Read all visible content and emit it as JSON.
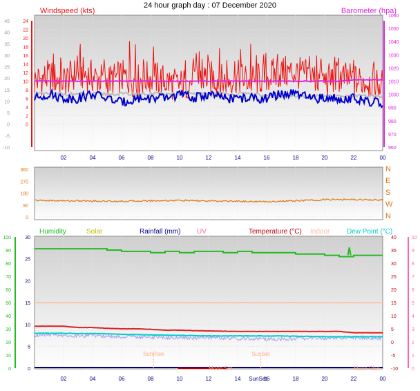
{
  "title": "24 hour graph day : 07 December 2020",
  "colors": {
    "red": "#ee1111",
    "blue": "#0000cc",
    "grey": "#bbbbbb",
    "magenta": "#dd22dd",
    "orange": "#dd7711",
    "green": "#22bb22",
    "yellow": "#bbbb00",
    "navy": "#000080",
    "pink": "#ff66aa",
    "dark_red": "#bb0000",
    "salmon": "#ffbb99",
    "cyan": "#00cccc",
    "lavender": "#aaaaee",
    "peach": "#ffaa88"
  },
  "x_ticks": [
    "02",
    "04",
    "06",
    "08",
    "10",
    "12",
    "14",
    "16",
    "18",
    "20",
    "22",
    "00"
  ],
  "chart_data": [
    {
      "type": "line",
      "panel": "wind-barometer",
      "left_label": "Windspeed (kts)",
      "right_label": "Barometer (hpa)",
      "left_ticks": [
        "-10",
        "-5",
        "0",
        "5",
        "10",
        "15",
        "20",
        "25",
        "30",
        "35",
        "40",
        "45"
      ],
      "left_ticks_red": [
        "0",
        "2",
        "4",
        "6",
        "8",
        "10",
        "12",
        "14",
        "16",
        "18",
        "20",
        "22",
        "24"
      ],
      "right_ticks": [
        "960",
        "970",
        "980",
        "990",
        "1000",
        "1010",
        "1020",
        "1030",
        "1040",
        "1050",
        "1060"
      ],
      "x_hours": [
        0,
        1,
        2,
        3,
        4,
        5,
        6,
        7,
        8,
        9,
        10,
        11,
        12,
        13,
        14,
        15,
        16,
        17,
        18,
        19,
        20,
        21,
        22,
        23,
        24
      ],
      "series": [
        {
          "key": "gust",
          "color": "red",
          "axis": "left_red",
          "values": [
            10,
            11,
            10,
            12,
            11,
            10,
            11,
            10,
            11,
            10,
            9,
            10,
            11,
            10,
            11,
            10,
            11,
            12,
            12,
            11,
            10,
            11,
            10,
            10,
            9
          ]
        },
        {
          "key": "gust_spikes",
          "color": "red",
          "axis": "left_red",
          "values": [
            16,
            17,
            16,
            19,
            16,
            17,
            20,
            17,
            18,
            20,
            16,
            17,
            18,
            16,
            19,
            17,
            17,
            20,
            17,
            17,
            17,
            17,
            16,
            16,
            14
          ]
        },
        {
          "key": "average",
          "color": "blue",
          "axis": "left_red",
          "values": [
            6,
            7,
            6,
            6,
            7,
            6,
            5,
            6,
            6,
            6,
            7,
            6,
            7,
            6,
            6,
            6,
            6,
            7,
            7,
            6,
            6,
            6,
            6,
            5,
            5
          ]
        },
        {
          "key": "average_grey",
          "color": "grey",
          "axis": "left_red",
          "values": [
            7,
            7,
            7,
            7,
            7,
            7,
            7,
            7,
            7,
            7,
            7,
            7,
            7,
            7,
            7,
            7,
            6.5,
            6.5,
            6.5,
            6.5,
            6.5,
            6.5,
            6.5,
            6.5,
            6.5
          ]
        },
        {
          "key": "barometer",
          "color": "magenta",
          "axis": "right",
          "values": [
            1010,
            1010,
            1010,
            1010,
            1010,
            1010,
            1010,
            1010,
            1010,
            1010,
            1010,
            1010,
            1010,
            1010,
            1010,
            1010,
            1010,
            1010,
            1010,
            1010,
            1010,
            1010,
            1011,
            1011,
            1011
          ]
        }
      ]
    },
    {
      "type": "line",
      "panel": "wind-direction",
      "left_ticks": [
        "0",
        "90",
        "180",
        "270",
        "360"
      ],
      "right_labels": [
        "N",
        "W",
        "S",
        "E",
        "N"
      ],
      "x_hours": [
        0,
        2,
        4,
        6,
        8,
        10,
        12,
        14,
        16,
        18,
        20,
        22,
        24
      ],
      "series": [
        {
          "key": "direction",
          "color": "orange",
          "values": [
            125,
            122,
            120,
            118,
            122,
            125,
            120,
            118,
            115,
            122,
            130,
            132,
            128
          ]
        }
      ]
    },
    {
      "type": "line",
      "panel": "temp-humidity",
      "legend": [
        "Humidity",
        "Solar",
        "Rainfall (mm)",
        "UV",
        "Temperature (°C)",
        "Indoor",
        "Dew Point (°C)"
      ],
      "legend_colors": [
        "green",
        "yellow",
        "navy",
        "pink",
        "dark_red",
        "salmon",
        "cyan"
      ],
      "left_ticks_green": [
        "0",
        "10",
        "20",
        "30",
        "40",
        "50",
        "60",
        "70",
        "80",
        "90",
        "100"
      ],
      "left_ticks_blue": [
        "0",
        "5",
        "10",
        "15",
        "20",
        "25",
        "30"
      ],
      "right_ticks_red": [
        "-10",
        "-5",
        "0",
        "5",
        "10",
        "15",
        "20",
        "25",
        "30",
        "35",
        "40"
      ],
      "right_ticks_pink": [
        "0",
        "1",
        "2",
        "3",
        "4",
        "5",
        "6",
        "7",
        "8",
        "9",
        "10"
      ],
      "annotations": [
        "SunRise",
        "SunSet",
        "SunSet",
        "Moon Set",
        "Moon Rise"
      ],
      "x_hours": [
        0,
        1,
        2,
        3,
        4,
        5,
        6,
        7,
        8,
        9,
        10,
        11,
        12,
        13,
        14,
        15,
        16,
        17,
        18,
        19,
        20,
        21,
        22,
        23,
        24
      ],
      "series": [
        {
          "key": "humidity",
          "color": "green",
          "axis": "green",
          "values": [
            91,
            91,
            91,
            91,
            91,
            90,
            89,
            89,
            88,
            89,
            88,
            89,
            89,
            88,
            89,
            88,
            88,
            88,
            87,
            87,
            86,
            85,
            86,
            86,
            86
          ]
        },
        {
          "key": "indoor",
          "color": "salmon",
          "axis": "red",
          "values": [
            15,
            15,
            15,
            15,
            15,
            15,
            15,
            15,
            15,
            15,
            15,
            15,
            15,
            15,
            15,
            15,
            15,
            15,
            15,
            15,
            15,
            15,
            15,
            15,
            15
          ]
        },
        {
          "key": "temperature",
          "color": "dark_red",
          "axis": "red",
          "values": [
            6,
            6,
            6,
            5.5,
            5.5,
            5.2,
            5,
            5,
            4.8,
            4.5,
            4.5,
            4.3,
            4.2,
            4.1,
            4,
            4,
            4,
            4,
            4,
            4,
            4,
            4,
            3.5,
            3.5,
            3.5
          ]
        },
        {
          "key": "dew_point",
          "color": "cyan",
          "axis": "red",
          "values": [
            3.3,
            3.3,
            3.3,
            3.2,
            3.2,
            3.1,
            2.9,
            2.8,
            2.7,
            2.6,
            2.5,
            2.4,
            2.3,
            2.3,
            2.3,
            2.3,
            2.3,
            2.3,
            2.2,
            2.1,
            2,
            2,
            2,
            2,
            2
          ]
        },
        {
          "key": "lavender",
          "color": "lavender",
          "axis": "red",
          "values": [
            2.5,
            2.8,
            2.6,
            2.3,
            2.5,
            2.2,
            2,
            2,
            1.8,
            1.7,
            1.6,
            1.5,
            1.8,
            1.4,
            1.2,
            1.3,
            1.1,
            1.1,
            1.2,
            1.4,
            1.5,
            1.6,
            1.7,
            1.6,
            1.5
          ]
        }
      ]
    }
  ]
}
